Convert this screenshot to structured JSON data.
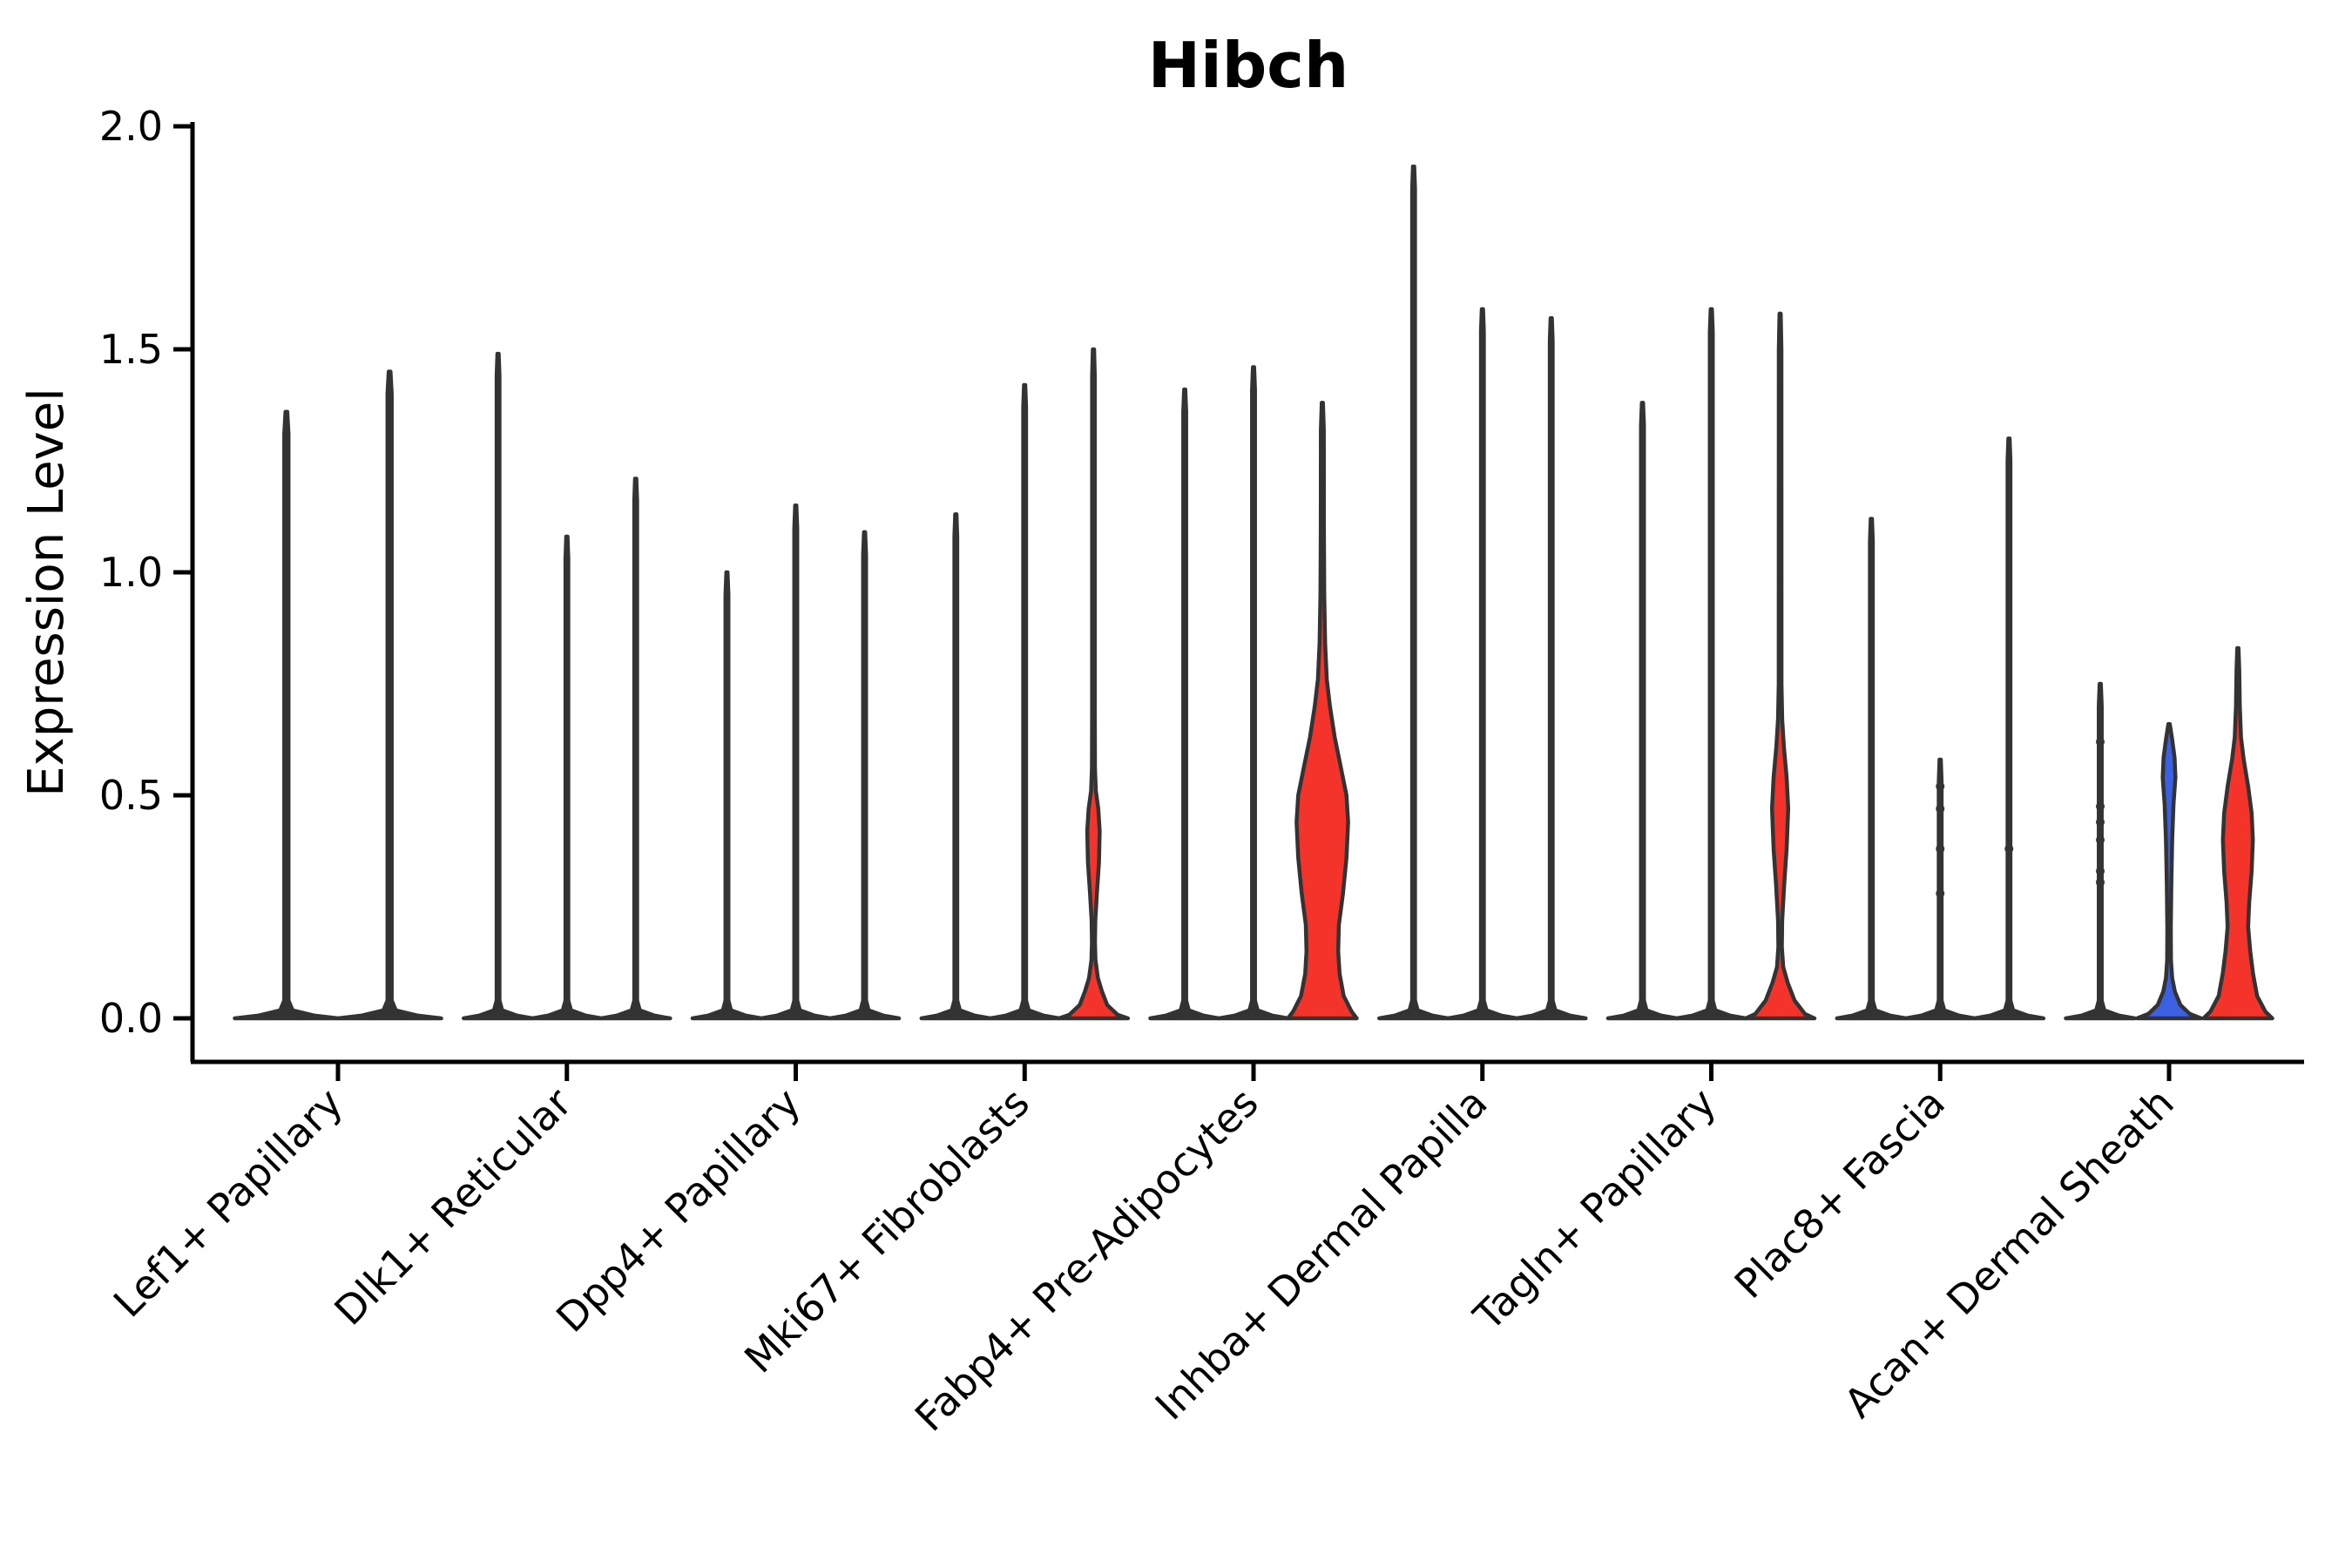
{
  "title": "Hibch",
  "chart_data": {
    "type": "violin",
    "title": "Hibch",
    "xlabel": "",
    "ylabel": "Expression Level",
    "ylim": [
      0.0,
      2.0
    ],
    "yticks": [
      0.0,
      0.5,
      1.0,
      1.5,
      2.0
    ],
    "ytick_labels": [
      "0.0",
      "0.5",
      "1.0",
      "1.5",
      "2.0"
    ],
    "grid": false,
    "legend": "none",
    "colors": {
      "red_fill": "#f4332b",
      "blue_fill": "#3c60e2",
      "violin_outline": "#333333",
      "axis": "#000000"
    },
    "note": "Each category holds 2-3 ultra-thin violins; 'top' = maximum expression reached by each violin; 'profile' = [expression, half-width fraction of slot] density outline for filled violins; 'points' = small data nubs on the spike.",
    "groups": [
      {
        "label": "Lef1+ Papillary",
        "violins": [
          {
            "top": 1.36
          },
          {
            "top": 1.45
          }
        ]
      },
      {
        "label": "Dlk1+ Reticular",
        "violins": [
          {
            "top": 1.49
          },
          {
            "top": 1.08
          },
          {
            "top": 1.21
          }
        ]
      },
      {
        "label": "Dpp4+ Papillary",
        "violins": [
          {
            "top": 1.0
          },
          {
            "top": 1.15
          },
          {
            "top": 1.09
          }
        ]
      },
      {
        "label": "Mki67+ Fibroblasts",
        "violins": [
          {
            "top": 1.13
          },
          {
            "top": 1.42
          },
          {
            "top": 1.5,
            "fill": "red",
            "profile": [
              [
                0,
                1.0
              ],
              [
                0.008,
                0.7
              ],
              [
                0.03,
                0.4
              ],
              [
                0.06,
                0.25
              ],
              [
                0.09,
                0.13
              ],
              [
                0.13,
                0.06
              ],
              [
                0.17,
                0.045
              ],
              [
                0.22,
                0.055
              ],
              [
                0.28,
                0.1
              ],
              [
                0.35,
                0.16
              ],
              [
                0.42,
                0.18
              ],
              [
                0.47,
                0.14
              ],
              [
                0.51,
                0.07
              ],
              [
                0.56,
                0.045
              ],
              [
                0.7,
                0.04
              ],
              [
                1.44,
                0.04
              ],
              [
                1.5,
                0.018
              ]
            ]
          }
        ]
      },
      {
        "label": "Fabp4+ Pre-Adipocytes",
        "violins": [
          {
            "top": 1.41
          },
          {
            "top": 1.46
          },
          {
            "top": 1.38,
            "fill": "red",
            "profile": [
              [
                0,
                1.0
              ],
              [
                0.015,
                0.85
              ],
              [
                0.05,
                0.62
              ],
              [
                0.1,
                0.5
              ],
              [
                0.15,
                0.46
              ],
              [
                0.21,
                0.48
              ],
              [
                0.28,
                0.6
              ],
              [
                0.36,
                0.7
              ],
              [
                0.44,
                0.75
              ],
              [
                0.5,
                0.7
              ],
              [
                0.57,
                0.52
              ],
              [
                0.63,
                0.36
              ],
              [
                0.7,
                0.22
              ],
              [
                0.76,
                0.13
              ],
              [
                0.84,
                0.08
              ],
              [
                0.95,
                0.055
              ],
              [
                1.1,
                0.045
              ],
              [
                1.32,
                0.042
              ],
              [
                1.38,
                0.018
              ]
            ]
          }
        ]
      },
      {
        "label": "Inhba+ Dermal Papilla",
        "violins": [
          {
            "top": 1.91
          },
          {
            "top": 1.59
          },
          {
            "top": 1.57
          }
        ]
      },
      {
        "label": "Tagln+ Papillary",
        "violins": [
          {
            "top": 1.38
          },
          {
            "top": 1.59
          },
          {
            "top": 1.58,
            "fill": "red",
            "profile": [
              [
                0,
                1.0
              ],
              [
                0.01,
                0.72
              ],
              [
                0.04,
                0.42
              ],
              [
                0.08,
                0.22
              ],
              [
                0.115,
                0.09
              ],
              [
                0.16,
                0.05
              ],
              [
                0.22,
                0.06
              ],
              [
                0.3,
                0.12
              ],
              [
                0.38,
                0.19
              ],
              [
                0.47,
                0.235
              ],
              [
                0.54,
                0.19
              ],
              [
                0.61,
                0.11
              ],
              [
                0.67,
                0.06
              ],
              [
                0.75,
                0.04
              ],
              [
                1.5,
                0.038
              ],
              [
                1.58,
                0.018
              ]
            ]
          }
        ]
      },
      {
        "label": "Plac8+ Fascia",
        "violins": [
          {
            "top": 1.12
          },
          {
            "top": 0.58,
            "points": [
              0.52,
              0.47,
              0.38,
              0.28
            ]
          },
          {
            "top": 1.3,
            "points": [
              0.38
            ]
          }
        ]
      },
      {
        "label": "Acan+ Dermal Sheath",
        "violins": [
          {
            "top": 0.75,
            "points": [
              0.62,
              0.475,
              0.44,
              0.4,
              0.33,
              0.305
            ]
          },
          {
            "top": 0.66,
            "fill": "blue",
            "profile": [
              [
                0,
                0.93
              ],
              [
                0.01,
                0.6
              ],
              [
                0.03,
                0.33
              ],
              [
                0.06,
                0.17
              ],
              [
                0.09,
                0.09
              ],
              [
                0.13,
                0.055
              ],
              [
                0.2,
                0.05
              ],
              [
                0.3,
                0.065
              ],
              [
                0.4,
                0.09
              ],
              [
                0.48,
                0.13
              ],
              [
                0.54,
                0.185
              ],
              [
                0.585,
                0.16
              ],
              [
                0.625,
                0.09
              ],
              [
                0.66,
                0.02
              ]
            ]
          },
          {
            "top": 0.83,
            "fill": "red",
            "profile": [
              [
                0,
                1.0
              ],
              [
                0.015,
                0.8
              ],
              [
                0.05,
                0.56
              ],
              [
                0.1,
                0.44
              ],
              [
                0.15,
                0.36
              ],
              [
                0.205,
                0.3
              ],
              [
                0.26,
                0.33
              ],
              [
                0.33,
                0.4
              ],
              [
                0.4,
                0.435
              ],
              [
                0.46,
                0.4
              ],
              [
                0.52,
                0.3
              ],
              [
                0.58,
                0.17
              ],
              [
                0.63,
                0.09
              ],
              [
                0.7,
                0.055
              ],
              [
                0.78,
                0.04
              ],
              [
                0.83,
                0.018
              ]
            ]
          }
        ]
      }
    ]
  }
}
